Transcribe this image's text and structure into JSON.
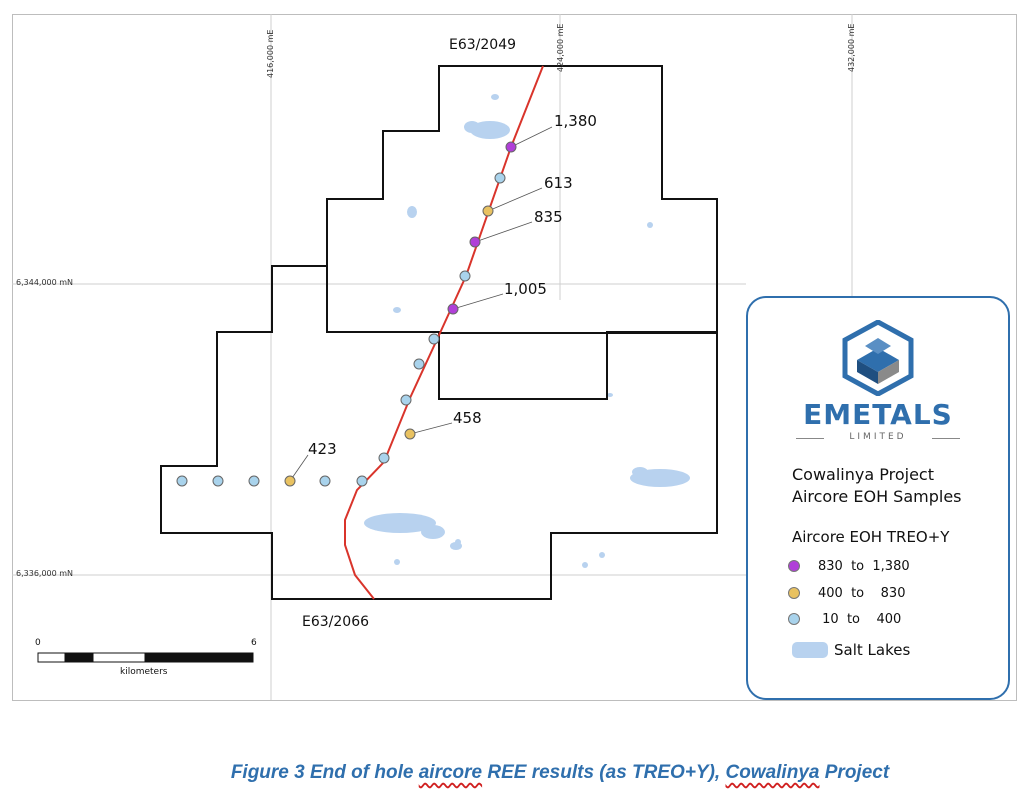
{
  "map": {
    "grid": {
      "easting_labels": [
        "416,000 mE",
        "424,000 mE",
        "432,000 mE"
      ],
      "northing_labels": [
        "6,344,000 mN",
        "6,336,000 mN"
      ]
    },
    "tenements": {
      "north_label": "E63/2049",
      "south_label": "E63/2066"
    },
    "sample_values": [
      "1,380",
      "613",
      "835",
      "1,005",
      "458",
      "423"
    ],
    "scale_bar": {
      "start": "0",
      "end": "6",
      "unit": "kilometers"
    },
    "colors": {
      "high": "#b03fd8",
      "mid": "#e9c261",
      "low": "#a9d3ec",
      "salt_lake": "#b8d2ef",
      "track": "#d9342b",
      "boundary": "#111111"
    }
  },
  "legend": {
    "logo": {
      "wordmark": "EMETALS",
      "subtitle": "LIMITED",
      "icon": "hexagon-logo-icon"
    },
    "title_lines": [
      "Cowalinya Project",
      "Aircore EOH Samples"
    ],
    "subheading": "Aircore EOH TREO+Y",
    "classes": [
      {
        "label": "830  to  1,380",
        "color": "#b03fd8"
      },
      {
        "label": "400  to    830",
        "color": "#e9c261"
      },
      {
        "label": " 10  to    400",
        "color": "#a9d3ec"
      }
    ],
    "salt_lakes_label": "Salt Lakes"
  },
  "caption": {
    "prefix": "Figure 3 End of hole ",
    "word_aircore": "aircore",
    "middle": " REE results (as TREO+Y), ",
    "word_cowalinya": "Cowalinya",
    "suffix": " Project"
  }
}
